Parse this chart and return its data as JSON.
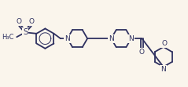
{
  "bg_color": "#faf5ec",
  "line_color": "#2e3060",
  "line_width": 1.3,
  "font_size": 6.5,
  "figsize": [
    2.39,
    1.11
  ],
  "dpi": 100,
  "xlim": [
    0,
    239
  ],
  "ylim": [
    0,
    111
  ]
}
